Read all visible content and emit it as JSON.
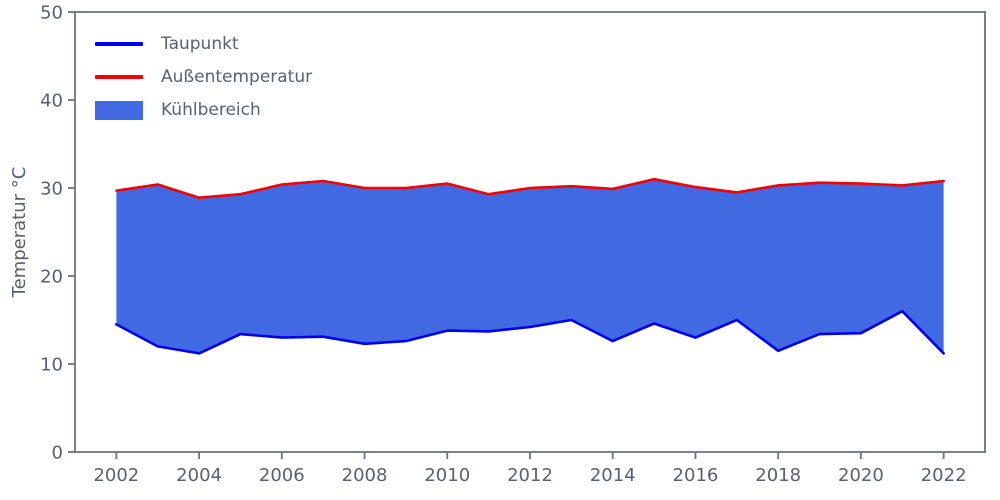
{
  "chart_data": {
    "type": "area",
    "title": "",
    "xlabel": "",
    "ylabel": "Temperatur °C",
    "x": [
      2002,
      2003,
      2004,
      2005,
      2006,
      2007,
      2008,
      2009,
      2010,
      2011,
      2012,
      2013,
      2014,
      2015,
      2016,
      2017,
      2018,
      2019,
      2020,
      2021,
      2022
    ],
    "series": [
      {
        "name": "Taupunkt",
        "color": "#0000ee",
        "values": [
          14.5,
          12.0,
          11.2,
          13.4,
          13.0,
          13.1,
          12.3,
          12.6,
          13.8,
          13.7,
          14.2,
          15.0,
          12.6,
          14.6,
          13.0,
          15.0,
          11.5,
          13.4,
          13.5,
          16.0,
          11.2
        ]
      },
      {
        "name": "Außentemperatur",
        "color": "#f50000",
        "values": [
          29.7,
          30.4,
          28.9,
          29.3,
          30.4,
          30.8,
          30.0,
          30.0,
          30.5,
          29.3,
          30.0,
          30.2,
          29.9,
          31.0,
          30.1,
          29.5,
          30.3,
          30.6,
          30.5,
          30.3,
          30.8
        ]
      }
    ],
    "fill": {
      "name": "Kühlbereich",
      "color": "#4169e1",
      "between": [
        "Taupunkt",
        "Außentemperatur"
      ]
    },
    "xlim": [
      2001,
      2023
    ],
    "ylim": [
      0,
      50
    ],
    "xticks": [
      2002,
      2004,
      2006,
      2008,
      2010,
      2012,
      2014,
      2016,
      2018,
      2020,
      2022
    ],
    "yticks": [
      0,
      10,
      20,
      30,
      40,
      50
    ],
    "grid": false,
    "legend_position": "upper-left",
    "axis_color": "#6b7280",
    "text_color": "#59616e"
  },
  "legend": {
    "items": [
      {
        "label": "Taupunkt",
        "sample": "blue-line"
      },
      {
        "label": "Außentemperatur",
        "sample": "red-line"
      },
      {
        "label": "Kühlbereich",
        "sample": "royalblue-patch"
      }
    ]
  }
}
